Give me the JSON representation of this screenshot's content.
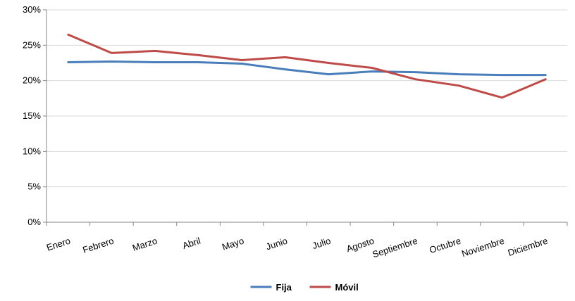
{
  "chart_data": {
    "type": "line",
    "categories": [
      "Enero",
      "Febrero",
      "Marzo",
      "Abril",
      "Mayo",
      "Junio",
      "Julio",
      "Agosto",
      "Septiembre",
      "Octubre",
      "Noviembre",
      "Diciembre"
    ],
    "series": [
      {
        "name": "Fija",
        "color": "#4a7ebb",
        "values": [
          22.6,
          22.7,
          22.6,
          22.6,
          22.4,
          21.6,
          20.9,
          21.3,
          21.2,
          20.9,
          20.8,
          20.8
        ]
      },
      {
        "name": "Móvil",
        "color": "#be4b48",
        "values": [
          26.5,
          23.9,
          24.2,
          23.6,
          22.9,
          23.3,
          22.5,
          21.8,
          20.2,
          19.3,
          17.6,
          20.2
        ]
      }
    ],
    "yticks": [
      "0%",
      "5%",
      "10%",
      "15%",
      "20%",
      "25%",
      "30%"
    ],
    "ylim": [
      0,
      30
    ],
    "grid": true,
    "legend_position": "bottom"
  }
}
